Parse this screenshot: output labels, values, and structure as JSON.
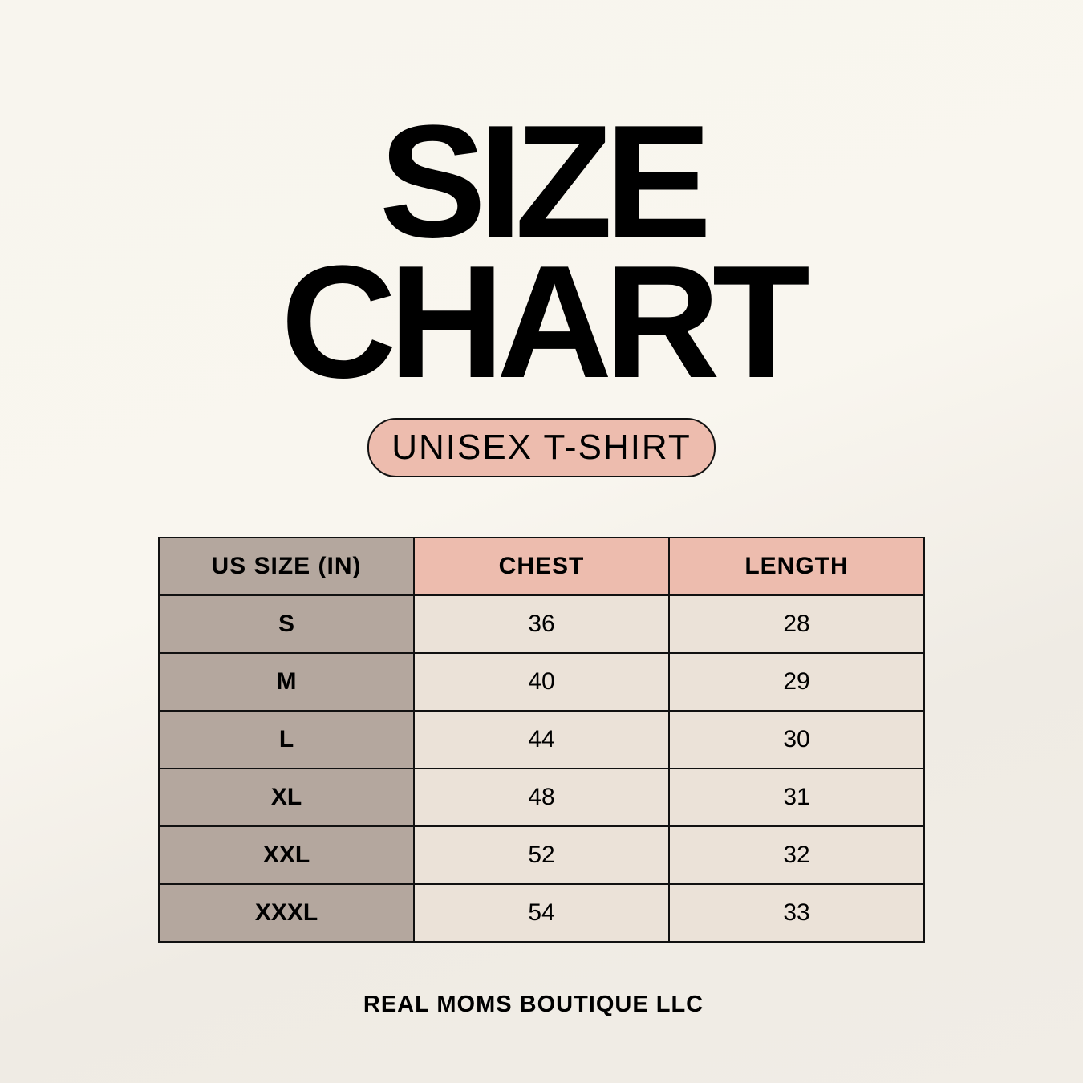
{
  "title": {
    "line1": "SIZE",
    "line2": "CHART"
  },
  "subtitle": "UNISEX T-SHIRT",
  "table": {
    "headers": [
      "US SIZE (IN)",
      "CHEST",
      "LENGTH"
    ],
    "rows": [
      [
        "S",
        "36",
        "28"
      ],
      [
        "M",
        "40",
        "29"
      ],
      [
        "L",
        "44",
        "30"
      ],
      [
        "XL",
        "48",
        "31"
      ],
      [
        "XXL",
        "52",
        "32"
      ],
      [
        "XXXL",
        "54",
        "33"
      ]
    ]
  },
  "footer": "REAL MOMS BOUTIQUE LLC",
  "colors": {
    "accent_pink": "#edbcae",
    "size_column": "#b4a79e",
    "cell": "#ebe2d8",
    "background": "#f8f5ee"
  }
}
